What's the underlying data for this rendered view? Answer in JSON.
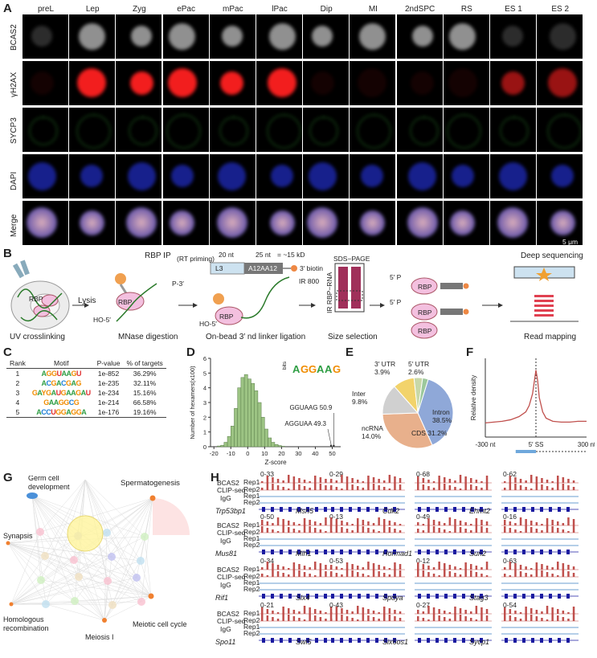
{
  "panel_letters": [
    "A",
    "B",
    "C",
    "D",
    "E",
    "F",
    "G",
    "H"
  ],
  "panelA": {
    "stages": [
      "preL",
      "Lep",
      "Zyg",
      "ePac",
      "mPac",
      "lPac",
      "Dip",
      "MI",
      "2ndSPC",
      "RS",
      "ES 1",
      "ES 2"
    ],
    "rows": [
      "BCAS2",
      "γH2AX",
      "SYCP3",
      "DAPI",
      "Merge"
    ],
    "row_colors": {
      "BCAS2": "#dddddd",
      "γH2AX": "#ff2020",
      "SYCP3": "#3fbf3f",
      "DAPI": "#2b3bff",
      "Merge": "#cc88cc"
    },
    "scale_bar": "5 μm"
  },
  "panelB": {
    "rbp_ip": "RBP IP",
    "lysis": "Lysis",
    "uv": "UV crosslinking",
    "mnase": "MNase digestion",
    "ligation": "On-bead 3′ nd linker ligation",
    "rt_priming": "(RT priming)",
    "nt20": "20 nt",
    "nt25": "25 nt",
    "kd": "= ~15 kD",
    "l3": "L3",
    "a12": "A12AA12",
    "biotin": "3′ biotin",
    "ir800": "IR 800",
    "sds": "SDS−PAGE",
    "ir_rbp_rna": "IR RBP−RNA",
    "size_sel": "Size selection",
    "deep_seq": "Deep sequencing",
    "read_map": "Read mapping",
    "rbp": "RBP",
    "p3": "P-3′",
    "ho5": "HO-5′",
    "p5": "5′ P"
  },
  "panelC": {
    "headers": [
      "Rank",
      "Motif",
      "P-value",
      "% of targets"
    ],
    "rows": [
      {
        "rank": "1",
        "motif": "AGGUAAGU",
        "p": "1e-852",
        "pct": "36.29%"
      },
      {
        "rank": "2",
        "motif": "ACGACGAG",
        "p": "1e-235",
        "pct": "32.11%"
      },
      {
        "rank": "3",
        "motif": "GAYGAUGAAGAU",
        "p": "1e-234",
        "pct": "15.16%"
      },
      {
        "rank": "4",
        "motif": "GAAGGCG",
        "p": "1e-214",
        "pct": "66.58%"
      },
      {
        "rank": "5",
        "motif": "ACCUGGAGGA",
        "p": "1e-176",
        "pct": "19.16%"
      }
    ]
  },
  "chart_data": [
    {
      "type": "bar",
      "panel": "D",
      "xlabel": "Z-score",
      "ylabel": "Number of hexamers(x100)",
      "xlim": [
        -22,
        55
      ],
      "ylim": [
        0,
        6
      ],
      "x_ticks": [
        "-20",
        "-10",
        "0",
        "10",
        "20",
        "30",
        "40",
        "50"
      ],
      "y_ticks": [
        "0",
        "1",
        "2",
        "3",
        "4",
        "5",
        "6"
      ],
      "bin_centers": [
        -17,
        -15,
        -13,
        -11,
        -9,
        -7,
        -5,
        -3,
        -1,
        1,
        3,
        5,
        7,
        9,
        11,
        13,
        15,
        17,
        19,
        21
      ],
      "values": [
        0.05,
        0.1,
        0.3,
        0.7,
        1.4,
        2.6,
        4.0,
        4.7,
        4.9,
        4.6,
        4.3,
        3.8,
        3.0,
        2.0,
        1.2,
        0.6,
        0.3,
        0.15,
        0.08,
        0.03
      ],
      "annotations": [
        {
          "text": "GGUAAG 50.9",
          "x": 50.9
        },
        {
          "text": "AGGUAA 49.3",
          "x": 49.3
        }
      ],
      "inset_label": "bits",
      "inset_logo": "AGGAAG"
    },
    {
      "type": "pie",
      "panel": "E",
      "labels": [
        "Intron",
        "CDS",
        "ncRNA",
        "Inter",
        "3′ UTR",
        "5′ UTR"
      ],
      "values": [
        38.5,
        31.2,
        14.0,
        9.8,
        3.9,
        2.6
      ],
      "display": [
        "Intron\n38.5%",
        "CDS 31.2%",
        "ncRNA\n14.0%",
        "Inter\n9.8%",
        "3′ UTR\n3.9%",
        "5′ UTR\n2.6%"
      ],
      "colors": [
        "#8fa8d8",
        "#e8b08c",
        "#d0d0d0",
        "#f2d36b",
        "#c8d8a8",
        "#9cc89c"
      ]
    },
    {
      "type": "line",
      "panel": "F",
      "ylabel": "Relative density",
      "x_ticks": [
        "-300 nt",
        "5′ SS",
        "300 nt"
      ],
      "x": [
        -300,
        -250,
        -200,
        -150,
        -100,
        -60,
        -40,
        -20,
        -10,
        0,
        10,
        20,
        40,
        60,
        100,
        150,
        200,
        250,
        300
      ],
      "y": [
        0.18,
        0.19,
        0.2,
        0.22,
        0.26,
        0.32,
        0.4,
        0.55,
        0.7,
        0.85,
        0.72,
        0.5,
        0.32,
        0.24,
        0.2,
        0.19,
        0.19,
        0.2,
        0.2
      ]
    }
  ],
  "panelG": {
    "nodes": [
      "Germ cell development",
      "Spermatogenesis",
      "Synapsis",
      "Homologous recombination",
      "Meiosis I",
      "Meiotic cell cycle"
    ]
  },
  "panelH": {
    "groups": [
      {
        "genes": [
          {
            "name": "Trp53bp1",
            "scale": "0-33"
          },
          {
            "name": "Msh5",
            "scale": "0-29"
          },
          {
            "name": "Cdk2",
            "scale": "0-68"
          },
          {
            "name": "Ehmt2",
            "scale": "0-62"
          }
        ]
      },
      {
        "genes": [
          {
            "name": "Mus81",
            "scale": "0-50"
          },
          {
            "name": "Mlh1",
            "scale": "0-13"
          },
          {
            "name": "Hormad1",
            "scale": "0-49"
          },
          {
            "name": "Sun2",
            "scale": "0-16"
          }
        ]
      },
      {
        "genes": [
          {
            "name": "Rif1",
            "scale": "0-34"
          },
          {
            "name": "Slx4",
            "scale": "0-53"
          },
          {
            "name": "Spdya",
            "scale": "0-12"
          },
          {
            "name": "Stag3",
            "scale": "0-63"
          }
        ]
      },
      {
        "genes": [
          {
            "name": "Spo11",
            "scale": "0-21"
          },
          {
            "name": "Swi5",
            "scale": "0-43"
          },
          {
            "name": "Six6os1",
            "scale": "0-27"
          },
          {
            "name": "Sycp1",
            "scale": "0-54"
          }
        ]
      }
    ],
    "track_labels": {
      "bcas2": "BCAS2",
      "clip": "CLIP-seq",
      "rep1": "Rep1",
      "rep2": "Rep2",
      "igg": "IgG"
    }
  }
}
